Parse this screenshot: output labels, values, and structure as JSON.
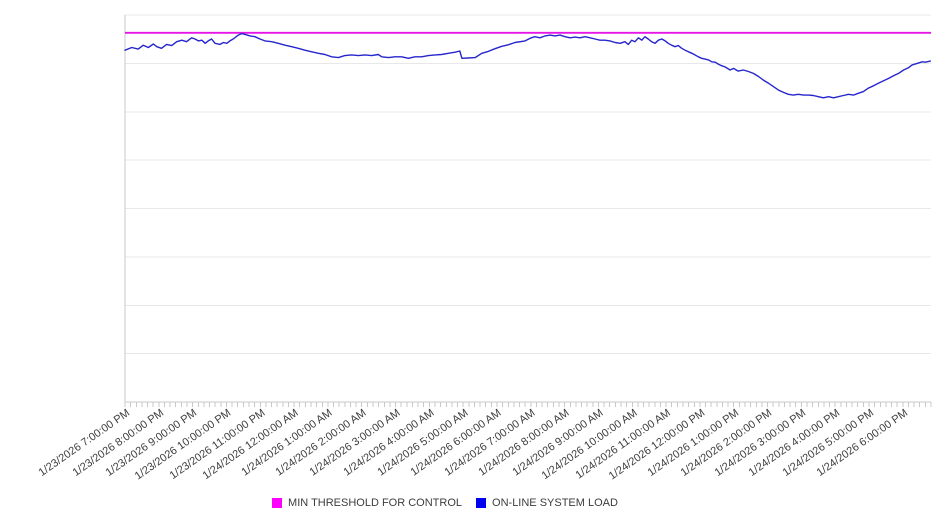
{
  "chart_data": {
    "type": "line",
    "title": "",
    "legend_position": "bottom-center",
    "x_axis": {
      "tick_labels": [
        "1/23/2026 7:00:00 PM",
        "1/23/2026 8:00:00 PM",
        "1/23/2026 9:00:00 PM",
        "1/23/2026 10:00:00 PM",
        "1/23/2026 11:00:00 PM",
        "1/24/2026 12:00:00 AM",
        "1/24/2026 1:00:00 AM",
        "1/24/2026 2:00:00 AM",
        "1/24/2026 3:00:00 AM",
        "1/24/2026 4:00:00 AM",
        "1/24/2026 5:00:00 AM",
        "1/24/2026 6:00:00 AM",
        "1/24/2026 7:00:00 AM",
        "1/24/2026 8:00:00 AM",
        "1/24/2026 9:00:00 AM",
        "1/24/2026 10:00:00 AM",
        "1/24/2026 11:00:00 AM",
        "1/24/2026 12:00:00 PM",
        "1/24/2026 1:00:00 PM",
        "1/24/2026 2:00:00 PM",
        "1/24/2026 3:00:00 PM",
        "1/24/2026 4:00:00 PM",
        "1/24/2026 5:00:00 PM",
        "1/24/2026 6:00:00 PM"
      ],
      "hours_per_label": 1,
      "minor_tick_count": 144,
      "range_hours": 23.83
    },
    "y_axis": {
      "labels_shown": false,
      "gridline_count": 8,
      "range": [
        0,
        100
      ]
    },
    "series": [
      {
        "name": "MIN THRESHOLD FOR CONTROL",
        "type": "threshold",
        "color": "#e616e6",
        "legend_color": "#ff00ff",
        "value": 95.4
      },
      {
        "name": "ON-LINE SYSTEM LOAD",
        "type": "line",
        "color": "#2626cd",
        "legend_color": "#0000f0",
        "points": [
          [
            0,
            90.9
          ],
          [
            0.2,
            91.6
          ],
          [
            0.39,
            91.2
          ],
          [
            0.54,
            92.2
          ],
          [
            0.69,
            91.6
          ],
          [
            0.84,
            92.5
          ],
          [
            0.94,
            91.8
          ],
          [
            1.08,
            91.4
          ],
          [
            1.23,
            92.4
          ],
          [
            1.38,
            92.1
          ],
          [
            1.53,
            93.1
          ],
          [
            1.68,
            93.5
          ],
          [
            1.82,
            93.1
          ],
          [
            1.97,
            94.1
          ],
          [
            2.07,
            93.8
          ],
          [
            2.17,
            93.3
          ],
          [
            2.27,
            93.5
          ],
          [
            2.37,
            92.7
          ],
          [
            2.46,
            93.3
          ],
          [
            2.56,
            93.8
          ],
          [
            2.66,
            92.7
          ],
          [
            2.81,
            92.4
          ],
          [
            2.91,
            92.9
          ],
          [
            3.01,
            92.7
          ],
          [
            3.1,
            93.3
          ],
          [
            3.2,
            93.8
          ],
          [
            3.35,
            94.8
          ],
          [
            3.45,
            95.2
          ],
          [
            3.55,
            95.0
          ],
          [
            3.7,
            94.6
          ],
          [
            3.84,
            94.4
          ],
          [
            3.99,
            93.8
          ],
          [
            4.14,
            93.3
          ],
          [
            4.34,
            93.1
          ],
          [
            4.53,
            92.7
          ],
          [
            4.73,
            92.2
          ],
          [
            4.93,
            91.8
          ],
          [
            5.12,
            91.4
          ],
          [
            5.32,
            90.9
          ],
          [
            5.52,
            90.5
          ],
          [
            5.72,
            90.1
          ],
          [
            5.91,
            89.8
          ],
          [
            6.11,
            89.2
          ],
          [
            6.31,
            89.0
          ],
          [
            6.5,
            89.5
          ],
          [
            6.7,
            89.7
          ],
          [
            6.9,
            89.5
          ],
          [
            7.1,
            89.7
          ],
          [
            7.29,
            89.5
          ],
          [
            7.49,
            89.8
          ],
          [
            7.59,
            89.2
          ],
          [
            7.79,
            89.0
          ],
          [
            7.98,
            89.2
          ],
          [
            8.18,
            89.2
          ],
          [
            8.38,
            88.8
          ],
          [
            8.57,
            89.2
          ],
          [
            8.77,
            89.2
          ],
          [
            8.97,
            89.5
          ],
          [
            9.17,
            89.7
          ],
          [
            9.36,
            89.8
          ],
          [
            9.56,
            90.1
          ],
          [
            9.76,
            90.4
          ],
          [
            9.9,
            90.7
          ],
          [
            9.96,
            88.8
          ],
          [
            10.14,
            88.9
          ],
          [
            10.35,
            89.0
          ],
          [
            10.55,
            90.1
          ],
          [
            10.74,
            90.6
          ],
          [
            10.94,
            91.3
          ],
          [
            11.14,
            91.9
          ],
          [
            11.33,
            92.3
          ],
          [
            11.53,
            92.9
          ],
          [
            11.83,
            93.3
          ],
          [
            11.98,
            94.0
          ],
          [
            12.12,
            94.4
          ],
          [
            12.27,
            94.1
          ],
          [
            12.42,
            94.6
          ],
          [
            12.57,
            94.8
          ],
          [
            12.71,
            94.6
          ],
          [
            12.86,
            94.8
          ],
          [
            13.01,
            94.4
          ],
          [
            13.16,
            94.1
          ],
          [
            13.31,
            94.3
          ],
          [
            13.45,
            94.1
          ],
          [
            13.6,
            94.4
          ],
          [
            13.75,
            94.1
          ],
          [
            13.9,
            93.8
          ],
          [
            14.04,
            93.5
          ],
          [
            14.19,
            93.5
          ],
          [
            14.34,
            93.3
          ],
          [
            14.49,
            92.9
          ],
          [
            14.64,
            92.7
          ],
          [
            14.78,
            93.1
          ],
          [
            14.88,
            92.4
          ],
          [
            14.98,
            93.5
          ],
          [
            15.08,
            93.1
          ],
          [
            15.18,
            94.1
          ],
          [
            15.28,
            93.5
          ],
          [
            15.37,
            94.4
          ],
          [
            15.47,
            93.8
          ],
          [
            15.57,
            93.1
          ],
          [
            15.67,
            92.7
          ],
          [
            15.77,
            93.5
          ],
          [
            15.87,
            93.8
          ],
          [
            15.97,
            93.3
          ],
          [
            16.06,
            92.7
          ],
          [
            16.16,
            92.2
          ],
          [
            16.26,
            91.8
          ],
          [
            16.36,
            92.1
          ],
          [
            16.46,
            91.4
          ],
          [
            16.56,
            90.9
          ],
          [
            16.66,
            90.5
          ],
          [
            16.76,
            90.1
          ],
          [
            16.85,
            89.7
          ],
          [
            16.95,
            89.2
          ],
          [
            17.05,
            88.8
          ],
          [
            17.15,
            88.6
          ],
          [
            17.25,
            88.4
          ],
          [
            17.35,
            87.9
          ],
          [
            17.45,
            87.8
          ],
          [
            17.54,
            87.3
          ],
          [
            17.64,
            86.9
          ],
          [
            17.74,
            86.6
          ],
          [
            17.89,
            85.8
          ],
          [
            17.99,
            86.2
          ],
          [
            18.13,
            85.5
          ],
          [
            18.28,
            85.8
          ],
          [
            18.43,
            85.4
          ],
          [
            18.58,
            84.9
          ],
          [
            18.73,
            84.1
          ],
          [
            18.87,
            83.2
          ],
          [
            19.02,
            82.4
          ],
          [
            19.17,
            81.5
          ],
          [
            19.32,
            80.6
          ],
          [
            19.47,
            80.0
          ],
          [
            19.61,
            79.5
          ],
          [
            19.76,
            79.3
          ],
          [
            19.91,
            79.5
          ],
          [
            20.06,
            79.3
          ],
          [
            20.21,
            79.3
          ],
          [
            20.35,
            79.2
          ],
          [
            20.5,
            78.9
          ],
          [
            20.65,
            78.6
          ],
          [
            20.8,
            78.9
          ],
          [
            20.95,
            78.6
          ],
          [
            21.09,
            78.9
          ],
          [
            21.24,
            79.2
          ],
          [
            21.39,
            79.5
          ],
          [
            21.54,
            79.3
          ],
          [
            21.69,
            79.8
          ],
          [
            21.83,
            80.2
          ],
          [
            21.98,
            81.1
          ],
          [
            22.13,
            81.7
          ],
          [
            22.28,
            82.4
          ],
          [
            22.43,
            83.0
          ],
          [
            22.57,
            83.6
          ],
          [
            22.72,
            84.3
          ],
          [
            22.87,
            84.9
          ],
          [
            23.02,
            85.8
          ],
          [
            23.17,
            86.4
          ],
          [
            23.27,
            87.1
          ],
          [
            23.42,
            87.5
          ],
          [
            23.57,
            87.9
          ],
          [
            23.66,
            87.8
          ],
          [
            23.81,
            88.1
          ]
        ]
      }
    ]
  }
}
